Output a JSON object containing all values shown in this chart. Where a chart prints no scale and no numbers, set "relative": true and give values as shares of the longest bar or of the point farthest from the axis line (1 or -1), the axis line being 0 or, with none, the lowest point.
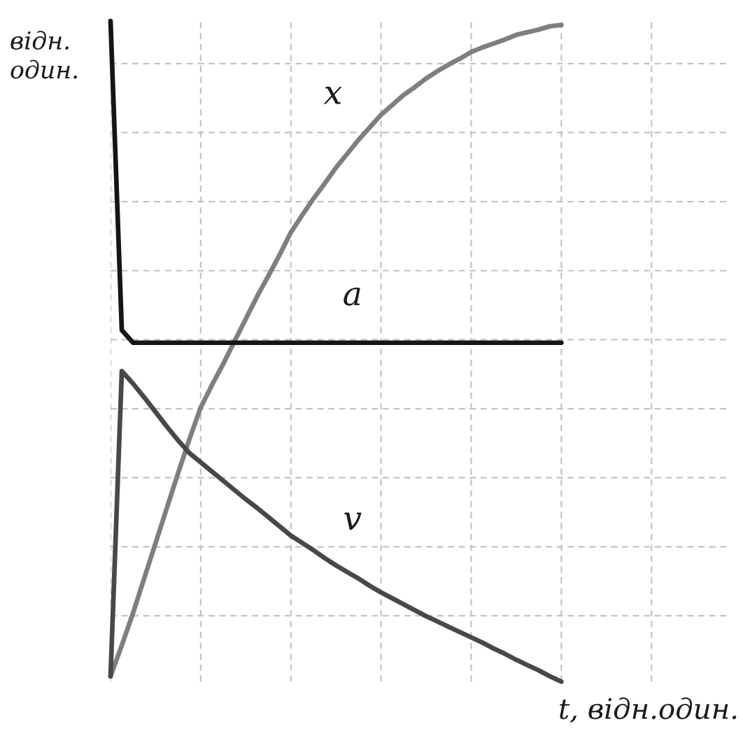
{
  "chart_data": {
    "type": "line",
    "relative": true,
    "ylabel": "відн. один.",
    "xlabel": "t, відн.один.",
    "categories": [
      null,
      null,
      null,
      null,
      null,
      null,
      null,
      null,
      null,
      null,
      null,
      null,
      null,
      null,
      null,
      null,
      null,
      null,
      null,
      null,
      null,
      null,
      null,
      null,
      null,
      null,
      null,
      null,
      null,
      null,
      null,
      null,
      null,
      null,
      null,
      null,
      null,
      null,
      null,
      null,
      null,
      null,
      null,
      null,
      null,
      null,
      null,
      null,
      null,
      null,
      null,
      null,
      null,
      null,
      null,
      null
    ],
    "series": [
      {
        "name": "x",
        "color": "#7f7f7f",
        "values": [
          0.008,
          0.055,
          0.104,
          0.157,
          0.21,
          0.263,
          0.316,
          0.367,
          0.415,
          0.449,
          0.481,
          0.515,
          0.549,
          0.583,
          0.614,
          0.646,
          0.68,
          0.706,
          0.731,
          0.754,
          0.778,
          0.799,
          0.82,
          0.839,
          0.858,
          0.873,
          0.888,
          0.9,
          0.913,
          0.924,
          0.934,
          0.943,
          0.953,
          0.96,
          0.966,
          0.972,
          0.979,
          0.983,
          0.987,
          0.992,
          0.994,
          null,
          null,
          null,
          null,
          null,
          null,
          null,
          null,
          null,
          null,
          null,
          null,
          null,
          null,
          null
        ]
      },
      {
        "name": "a",
        "color": "#151515",
        "values": [
          1.0,
          0.532,
          0.513,
          0.513,
          0.513,
          0.513,
          0.513,
          0.513,
          0.513,
          0.513,
          0.513,
          0.513,
          0.513,
          0.513,
          0.513,
          0.513,
          0.513,
          0.513,
          0.513,
          0.513,
          0.513,
          0.513,
          0.513,
          0.513,
          0.513,
          0.513,
          0.513,
          0.513,
          0.513,
          0.513,
          0.513,
          0.513,
          0.513,
          0.513,
          0.513,
          0.513,
          0.513,
          0.513,
          0.513,
          0.513,
          0.513,
          null,
          null,
          null,
          null,
          null,
          null,
          null,
          null,
          null,
          null,
          null,
          null,
          null,
          null,
          null
        ]
      },
      {
        "name": "v",
        "color": "#484848",
        "values": [
          0.008,
          0.47,
          0.451,
          0.43,
          0.408,
          0.386,
          0.365,
          0.346,
          0.332,
          0.318,
          0.304,
          0.29,
          0.276,
          0.263,
          0.249,
          0.235,
          0.221,
          0.21,
          0.199,
          0.187,
          0.176,
          0.166,
          0.156,
          0.145,
          0.135,
          0.126,
          0.117,
          0.108,
          0.099,
          0.091,
          0.083,
          0.075,
          0.067,
          0.059,
          0.05,
          0.042,
          0.033,
          0.025,
          0.017,
          0.008,
          0.0,
          null,
          null,
          null,
          null,
          null,
          null,
          null,
          null,
          null,
          null,
          null,
          null,
          null,
          null,
          null
        ]
      }
    ],
    "grid": true,
    "tick_labels": false,
    "line_style": "solid"
  }
}
